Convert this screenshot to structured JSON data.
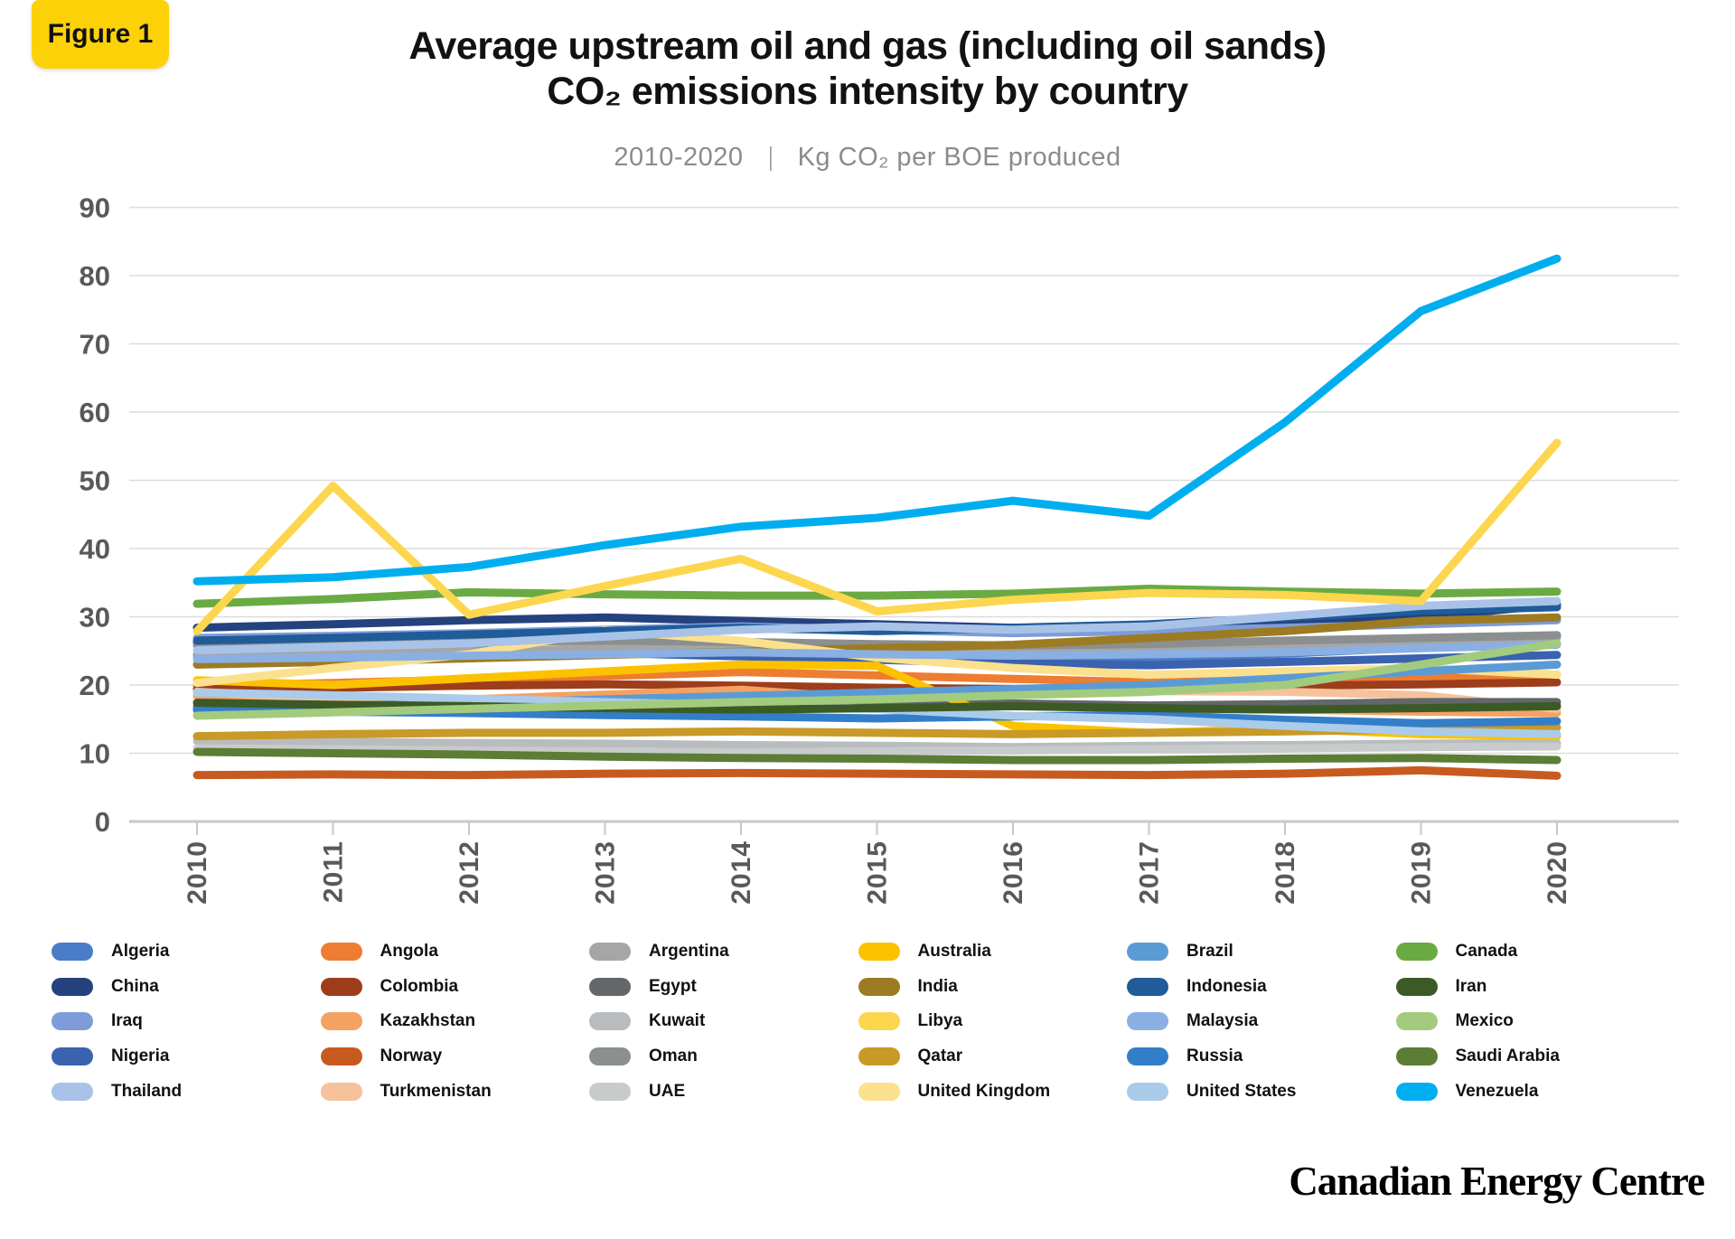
{
  "figure_badge": {
    "label": "Figure 1",
    "bg_color": "#fdd108"
  },
  "header": {
    "title_line1": "Average upstream oil and gas (including oil sands)",
    "title_line2": "CO₂ emissions intensity by country",
    "subtitle_range": "2010-2020",
    "subtitle_divider": "|",
    "subtitle_units": "Kg CO₂ per BOE produced"
  },
  "footer": {
    "brand": "Canadian Energy Centre"
  },
  "axis_style": {
    "label_color": "#58595b",
    "grid_color": "#dcdcdc",
    "axis_color": "#c8c8c8"
  },
  "chart_data": {
    "type": "line",
    "x": [
      "2010",
      "2011",
      "2012",
      "2013",
      "2014",
      "2015",
      "2016",
      "2017",
      "2018",
      "2019",
      "2020"
    ],
    "ylim": [
      0,
      90
    ],
    "ytick_interval": 10,
    "grid": true,
    "legend_position": "bottom",
    "legend_columns": 6,
    "emphasis_order": [
      "Thailand",
      "Canada",
      "Libya",
      "Venezuela"
    ],
    "series": [
      {
        "name": "Algeria",
        "color": "#4a7cc7",
        "values": [
          24.4,
          24.0,
          24.3,
          24.8,
          25.2,
          24.8,
          24.3,
          24.0,
          24.6,
          25.5,
          27.3
        ]
      },
      {
        "name": "China",
        "color": "#24427e",
        "values": [
          28.4,
          28.9,
          29.5,
          29.9,
          29.4,
          28.9,
          28.4,
          27.9,
          28.9,
          29.9,
          31.8
        ]
      },
      {
        "name": "Iraq",
        "color": "#7e9cd8",
        "values": [
          26.9,
          27.2,
          27.6,
          28.1,
          28.6,
          28.1,
          27.6,
          27.9,
          28.4,
          28.9,
          29.5
        ]
      },
      {
        "name": "Nigeria",
        "color": "#3a62ae",
        "values": [
          26.2,
          25.7,
          25.2,
          24.7,
          24.2,
          23.7,
          23.2,
          22.9,
          23.4,
          23.9,
          24.4
        ]
      },
      {
        "name": "Thailand",
        "color": "#a9c3e8",
        "values": [
          25.1,
          25.6,
          26.1,
          27.1,
          28.1,
          28.6,
          28.1,
          28.6,
          30.1,
          31.6,
          32.3
        ]
      },
      {
        "name": "Angola",
        "color": "#ed7d31",
        "values": [
          19.9,
          20.3,
          20.8,
          21.3,
          21.9,
          21.4,
          20.9,
          20.4,
          20.9,
          21.3,
          21.5
        ]
      },
      {
        "name": "Colombia",
        "color": "#9e3d1b",
        "values": [
          19.4,
          19.6,
          19.9,
          20.1,
          19.9,
          19.6,
          19.4,
          19.6,
          19.9,
          20.1,
          20.4
        ]
      },
      {
        "name": "Kazakhstan",
        "color": "#f4a263",
        "values": [
          18.4,
          18.1,
          17.9,
          18.6,
          19.3,
          18.0,
          16.9,
          16.6,
          16.4,
          16.1,
          15.9
        ]
      },
      {
        "name": "Norway",
        "color": "#c95a1f",
        "values": [
          6.8,
          6.9,
          6.8,
          7.0,
          7.1,
          7.0,
          6.9,
          6.8,
          7.0,
          7.5,
          6.7
        ]
      },
      {
        "name": "Turkmenistan",
        "color": "#f5c29b",
        "values": [
          19.0,
          18.0,
          16.9,
          17.4,
          17.9,
          18.4,
          18.9,
          19.1,
          19.0,
          18.5,
          16.5
        ]
      },
      {
        "name": "Argentina",
        "color": "#a6a6a6",
        "values": [
          24.2,
          24.5,
          24.9,
          25.4,
          25.9,
          25.4,
          25.0,
          25.4,
          25.9,
          26.4,
          27.0
        ]
      },
      {
        "name": "Egypt",
        "color": "#63676a",
        "values": [
          16.8,
          17.0,
          17.2,
          17.0,
          16.8,
          17.0,
          17.3,
          17.0,
          17.2,
          17.5,
          17.5
        ]
      },
      {
        "name": "Kuwait",
        "color": "#b9bcbe",
        "values": [
          11.8,
          11.7,
          11.5,
          11.4,
          11.2,
          11.1,
          10.9,
          11.1,
          11.2,
          11.4,
          11.5
        ]
      },
      {
        "name": "Oman",
        "color": "#8b8f90",
        "values": [
          25.8,
          26.0,
          26.3,
          26.5,
          26.3,
          26.0,
          25.8,
          26.0,
          26.5,
          26.9,
          27.3
        ]
      },
      {
        "name": "UAE",
        "color": "#c8cbcc",
        "values": [
          10.7,
          10.6,
          10.4,
          10.3,
          10.1,
          10.3,
          10.4,
          10.6,
          10.7,
          10.9,
          11.0
        ]
      },
      {
        "name": "Australia",
        "color": "#fcc200",
        "values": [
          20.7,
          20.0,
          21.0,
          22.0,
          23.0,
          22.8,
          14.0,
          13.0,
          13.6,
          12.8,
          12.5
        ]
      },
      {
        "name": "India",
        "color": "#9c7b22",
        "values": [
          23.0,
          23.4,
          23.9,
          24.4,
          24.9,
          25.4,
          25.9,
          26.9,
          27.9,
          29.4,
          29.9
        ]
      },
      {
        "name": "Libya",
        "color": "#fdd64f",
        "values": [
          27.9,
          49.2,
          30.3,
          34.5,
          38.5,
          30.8,
          32.5,
          33.5,
          33.2,
          32.3,
          55.5
        ]
      },
      {
        "name": "Qatar",
        "color": "#c99a27",
        "values": [
          12.5,
          12.8,
          13.0,
          13.0,
          13.2,
          13.0,
          12.8,
          13.0,
          13.2,
          13.5,
          13.8
        ]
      },
      {
        "name": "United Kingdom",
        "color": "#fbe08e",
        "values": [
          20.3,
          22.5,
          24.5,
          28.0,
          26.5,
          24.0,
          22.5,
          21.5,
          22.0,
          22.5,
          21.5
        ]
      },
      {
        "name": "Brazil",
        "color": "#5b9bd5",
        "values": [
          16.3,
          16.8,
          17.3,
          17.9,
          18.4,
          18.9,
          19.4,
          20.0,
          21.0,
          22.0,
          23.0
        ]
      },
      {
        "name": "Indonesia",
        "color": "#1f5c99",
        "values": [
          26.5,
          26.9,
          27.4,
          27.9,
          28.4,
          27.9,
          28.4,
          28.9,
          29.9,
          30.9,
          31.4
        ]
      },
      {
        "name": "Malaysia",
        "color": "#8ab0e3",
        "values": [
          23.8,
          24.0,
          24.3,
          24.5,
          24.8,
          24.5,
          24.3,
          24.5,
          24.8,
          25.4,
          25.9
        ]
      },
      {
        "name": "Russia",
        "color": "#337ec9",
        "values": [
          16.4,
          16.1,
          15.9,
          15.6,
          15.4,
          15.1,
          15.4,
          15.6,
          14.9,
          14.4,
          14.7
        ]
      },
      {
        "name": "United States",
        "color": "#abcbea",
        "values": [
          18.9,
          18.5,
          18.0,
          17.5,
          17.0,
          16.5,
          15.5,
          15.0,
          14.0,
          13.2,
          12.8
        ]
      },
      {
        "name": "Canada",
        "color": "#6aaa43",
        "values": [
          31.9,
          32.6,
          33.6,
          33.3,
          33.1,
          33.1,
          33.4,
          34.1,
          33.7,
          33.4,
          33.7
        ]
      },
      {
        "name": "Iran",
        "color": "#3c5a26",
        "values": [
          17.4,
          17.1,
          16.9,
          16.6,
          16.4,
          16.6,
          16.9,
          16.6,
          16.4,
          16.6,
          16.9
        ]
      },
      {
        "name": "Mexico",
        "color": "#a2cb7e",
        "values": [
          15.5,
          16.0,
          16.5,
          17.0,
          17.5,
          17.9,
          18.5,
          19.0,
          20.0,
          23.0,
          26.1
        ]
      },
      {
        "name": "Saudi Arabia",
        "color": "#5b7d34",
        "values": [
          10.2,
          10.0,
          9.8,
          9.5,
          9.3,
          9.2,
          9.0,
          9.0,
          9.2,
          9.3,
          9.0
        ]
      },
      {
        "name": "Venezuela",
        "color": "#00aeef",
        "values": [
          35.2,
          35.8,
          37.3,
          40.5,
          43.2,
          44.5,
          47.0,
          44.8,
          58.5,
          74.8,
          82.5
        ]
      }
    ]
  }
}
